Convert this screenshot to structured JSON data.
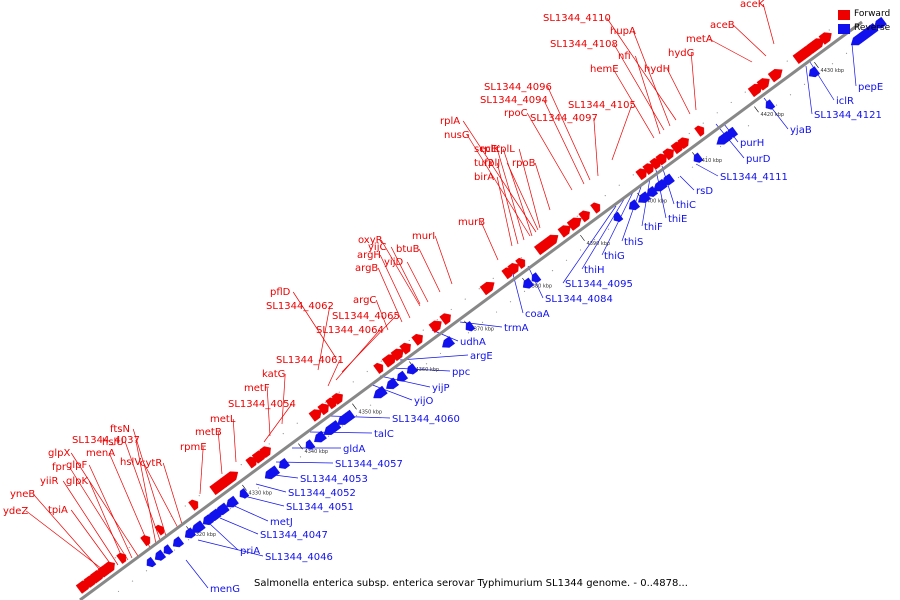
{
  "colors": {
    "forward": "#ee0000",
    "reverse": "#1111ee",
    "backbone": "#888888",
    "background": "#ffffff"
  },
  "legend": [
    {
      "label": "Forward",
      "color": "#ee0000"
    },
    {
      "label": "Reverse",
      "color": "#1111ee"
    }
  ],
  "caption": "Salmonella enterica subsp. enterica serovar Typhimurium SL1344 genome. - 0..4878...",
  "ticks": [
    "4320 kbp",
    "4330 kbp",
    "4340 kbp",
    "4350 kbp",
    "4360 kbp",
    "4370 kbp",
    "4380 kbp",
    "4390 kbp",
    "4400 kbp",
    "4410 kbp",
    "4420 kbp",
    "4430 kbp"
  ],
  "forward_labels": [
    "ydeZ",
    "yneB",
    "tpiA",
    "yiiR",
    "glpK",
    "fpr",
    "glpF",
    "glpX",
    "menA",
    "SL1344_4037",
    "hslU",
    "ftsN",
    "hslV",
    "cytR",
    "rpmE",
    "metB",
    "metL",
    "SL1344_4054",
    "metF",
    "katG",
    "SL1344_4061",
    "SL1344_4064",
    "SL1344_4065",
    "SL1344_4062",
    "pflD",
    "argC",
    "argB",
    "argH",
    "oxyR",
    "yijC",
    "yijD",
    "btuB",
    "murI",
    "murB",
    "birA",
    "tuf2",
    "secE",
    "nusG",
    "rplK",
    "rplA",
    "rplJ",
    "rplL",
    "rpoB",
    "rpoC",
    "SL1344_4094",
    "SL1344_4096",
    "SL1344_4097",
    "SL1344_4105",
    "hemE",
    "nfi",
    "SL1344_4108",
    "hupA",
    "SL1344_4110",
    "hydH",
    "hydG",
    "metA",
    "aceB",
    "aceK"
  ],
  "reverse_labels": [
    "menG",
    "SL1344_4046",
    "priA",
    "SL1344_4047",
    "metJ",
    "SL1344_4051",
    "SL1344_4052",
    "SL1344_4053",
    "SL1344_4057",
    "gldA",
    "talC",
    "SL1344_4060",
    "yijO",
    "yijP",
    "ppc",
    "argE",
    "udhA",
    "trmA",
    "coaA",
    "SL1344_4084",
    "SL1344_4095",
    "thiH",
    "thiG",
    "thiS",
    "thiF",
    "thiE",
    "thiC",
    "rsD",
    "SL1344_4111",
    "purD",
    "purH",
    "yjaB",
    "SL1344_4121",
    "iclR",
    "pepE"
  ]
}
